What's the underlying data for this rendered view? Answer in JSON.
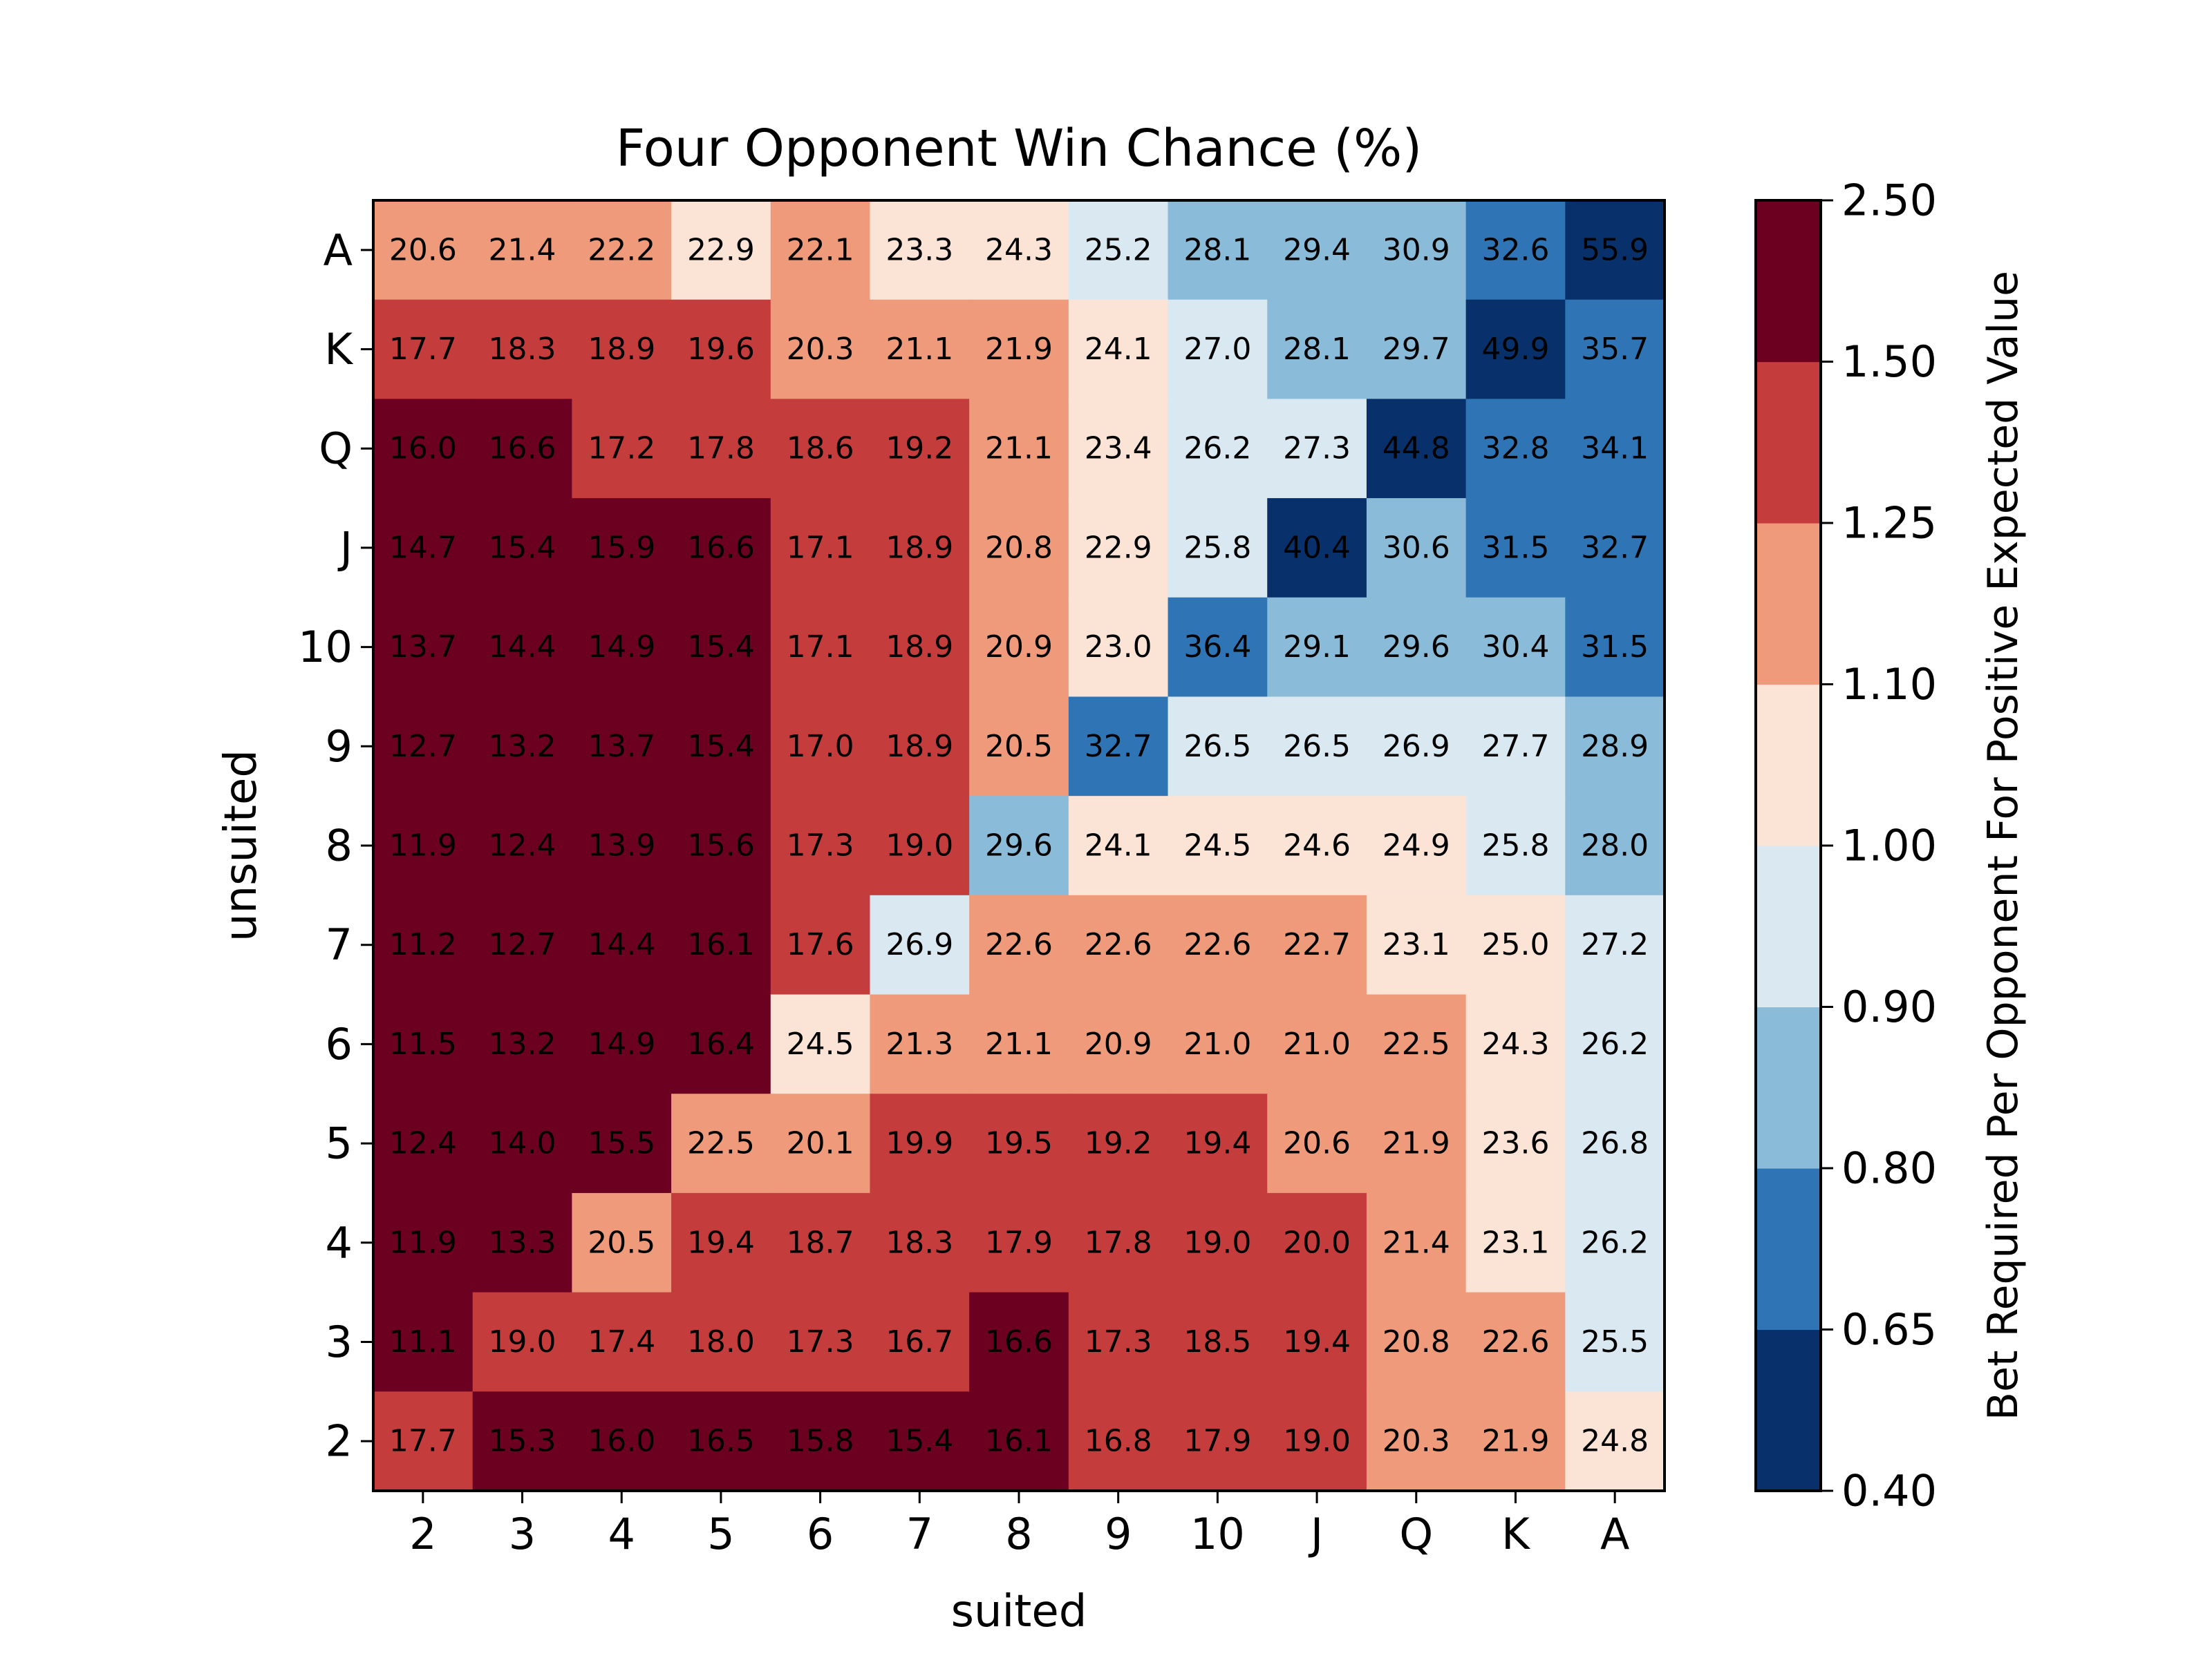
{
  "chart_data": {
    "type": "heatmap",
    "title": "Four Opponent Win Chance (%)",
    "xlabel": "suited",
    "ylabel": "unsuited",
    "x_categories": [
      "2",
      "3",
      "4",
      "5",
      "6",
      "7",
      "8",
      "9",
      "10",
      "J",
      "Q",
      "K",
      "A"
    ],
    "y_categories": [
      "A",
      "K",
      "Q",
      "J",
      "10",
      "9",
      "8",
      "7",
      "6",
      "5",
      "4",
      "3",
      "2"
    ],
    "values": [
      [
        20.6,
        21.4,
        22.2,
        22.9,
        22.1,
        23.3,
        24.3,
        25.2,
        28.1,
        29.4,
        30.9,
        32.6,
        55.9
      ],
      [
        17.7,
        18.3,
        18.9,
        19.6,
        20.3,
        21.1,
        21.9,
        24.1,
        27.0,
        28.1,
        29.7,
        49.9,
        35.7
      ],
      [
        16.0,
        16.6,
        17.2,
        17.8,
        18.6,
        19.2,
        21.1,
        23.4,
        26.2,
        27.3,
        44.8,
        32.8,
        34.1
      ],
      [
        14.7,
        15.4,
        15.9,
        16.6,
        17.1,
        18.9,
        20.8,
        22.9,
        25.8,
        40.4,
        30.6,
        31.5,
        32.7
      ],
      [
        13.7,
        14.4,
        14.9,
        15.4,
        17.1,
        18.9,
        20.9,
        23.0,
        36.4,
        29.1,
        29.6,
        30.4,
        31.5
      ],
      [
        12.7,
        13.2,
        13.7,
        15.4,
        17.0,
        18.9,
        20.5,
        32.7,
        26.5,
        26.5,
        26.9,
        27.7,
        28.9
      ],
      [
        11.9,
        12.4,
        13.9,
        15.6,
        17.3,
        19.0,
        29.6,
        24.1,
        24.5,
        24.6,
        24.9,
        25.8,
        28.0
      ],
      [
        11.2,
        12.7,
        14.4,
        16.1,
        17.6,
        26.9,
        22.6,
        22.6,
        22.6,
        22.7,
        23.1,
        25.0,
        27.2
      ],
      [
        11.5,
        13.2,
        14.9,
        16.4,
        24.5,
        21.3,
        21.1,
        20.9,
        21.0,
        21.0,
        22.5,
        24.3,
        26.2
      ],
      [
        12.4,
        14.0,
        15.5,
        22.5,
        20.1,
        19.9,
        19.5,
        19.2,
        19.4,
        20.6,
        21.9,
        23.6,
        26.8
      ],
      [
        11.9,
        13.3,
        20.5,
        19.4,
        18.7,
        18.3,
        17.9,
        17.8,
        19.0,
        20.0,
        21.4,
        23.1,
        26.2
      ],
      [
        11.1,
        19.0,
        17.4,
        18.0,
        17.3,
        16.7,
        16.6,
        17.3,
        18.5,
        19.4,
        20.8,
        22.6,
        25.5
      ],
      [
        17.7,
        15.3,
        16.0,
        16.5,
        15.8,
        15.4,
        16.1,
        16.8,
        17.9,
        19.0,
        20.3,
        21.9,
        24.8
      ]
    ],
    "colorbar": {
      "label": "Bet Required Per Opponent For Positive Expected Value",
      "boundaries": [
        0.4,
        0.65,
        0.8,
        0.9,
        1.0,
        1.1,
        1.25,
        1.5,
        2.5
      ],
      "tick_labels": [
        "0.40",
        "0.65",
        "0.80",
        "0.90",
        "1.00",
        "1.10",
        "1.25",
        "1.50",
        "2.50"
      ],
      "colors": [
        "#08306b",
        "#2f75b6",
        "#8abbd9",
        "#d9e8f1",
        "#fbe3d6",
        "#ee9a7b",
        "#c43c3c",
        "#6b0020"
      ]
    },
    "color_metric": "bet_required = 100 / (4 * win_chance)"
  }
}
